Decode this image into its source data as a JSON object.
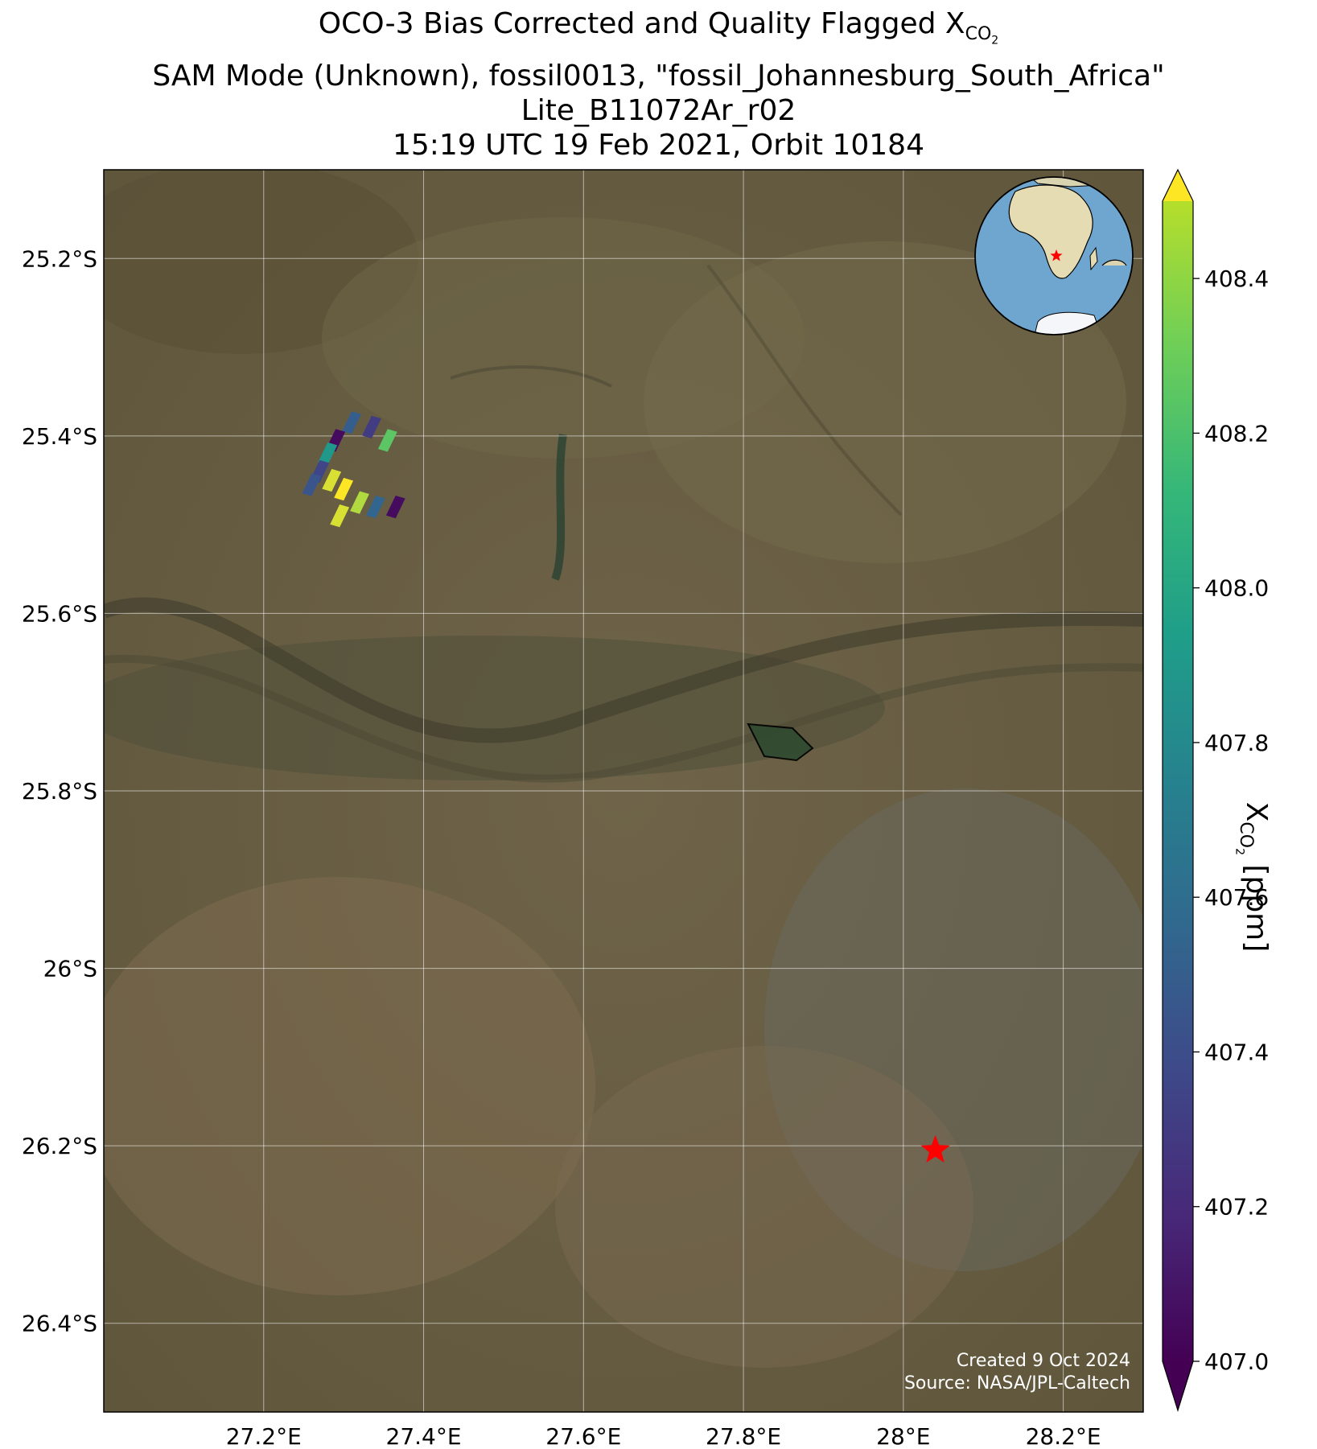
{
  "title": {
    "line1_prefix": "OCO-3 Bias Corrected and Quality Flagged X",
    "line1_sub": "CO",
    "line1_subsub": "2",
    "line2": "SAM Mode (Unknown), fossil0013, \"fossil_Johannesburg_South_Africa\"",
    "line3": "Lite_B11072Ar_r02",
    "line4": "15:19 UTC 19 Feb 2021, Orbit 10184"
  },
  "map": {
    "basemap": "satellite imagery",
    "lon_range": [
      27.0,
      28.3
    ],
    "lat_range": [
      -26.5,
      -25.1
    ],
    "lon_ticks": [
      27.2,
      27.4,
      27.6,
      27.8,
      28.0,
      28.2
    ],
    "lon_tick_labels": [
      "27.2°E",
      "27.4°E",
      "27.6°E",
      "27.8°E",
      "28°E",
      "28.2°E"
    ],
    "lat_ticks": [
      -25.2,
      -25.4,
      -25.6,
      -25.8,
      -26.0,
      -26.2,
      -26.4
    ],
    "lat_tick_labels": [
      "25.2°S",
      "25.4°S",
      "25.6°S",
      "25.8°S",
      "26°S",
      "26.2°S",
      "26.4°S"
    ],
    "gridlines": true,
    "target_marker": {
      "lon": 28.04,
      "lat": -26.205,
      "color": "#ff0000",
      "symbol": "star"
    },
    "inset_globe": {
      "placement": "top-right",
      "marker_color": "#ff0000",
      "ocean_color": "#6ea6cf",
      "land_color": "#e6dcb4"
    },
    "credit_line1": "Created 9 Oct 2024",
    "credit_line2": "Source: NASA/JPL-Caltech"
  },
  "chart_data": {
    "type": "scatter",
    "description_units": "XCO2 soundings (lon, lat, value in ppm)",
    "soundings": [
      {
        "lon": 27.31,
        "lat": -25.385,
        "value": 407.5
      },
      {
        "lon": 27.335,
        "lat": -25.39,
        "value": 407.3
      },
      {
        "lon": 27.355,
        "lat": -25.405,
        "value": 408.25
      },
      {
        "lon": 27.29,
        "lat": -25.405,
        "value": 407.05
      },
      {
        "lon": 27.28,
        "lat": -25.42,
        "value": 407.9
      },
      {
        "lon": 27.27,
        "lat": -25.44,
        "value": 407.35
      },
      {
        "lon": 27.26,
        "lat": -25.455,
        "value": 407.45
      },
      {
        "lon": 27.285,
        "lat": -25.45,
        "value": 408.45
      },
      {
        "lon": 27.3,
        "lat": -25.46,
        "value": 408.5
      },
      {
        "lon": 27.32,
        "lat": -25.475,
        "value": 408.4
      },
      {
        "lon": 27.34,
        "lat": -25.48,
        "value": 407.55
      },
      {
        "lon": 27.365,
        "lat": -25.48,
        "value": 407.05
      },
      {
        "lon": 27.295,
        "lat": -25.49,
        "value": 408.45
      }
    ],
    "colorbar": {
      "colormap": "viridis",
      "vmin": 407.0,
      "vmax": 408.5,
      "ticks": [
        407.0,
        407.2,
        407.4,
        407.6,
        407.8,
        408.0,
        408.2,
        408.4
      ],
      "tick_labels": [
        "407.0",
        "407.2",
        "407.4",
        "407.6",
        "407.8",
        "408.0",
        "408.2",
        "408.4"
      ],
      "extend": "both",
      "label_prefix": "X",
      "label_sub": "CO",
      "label_subsub": "2",
      "label_suffix": " [ppm]"
    }
  }
}
